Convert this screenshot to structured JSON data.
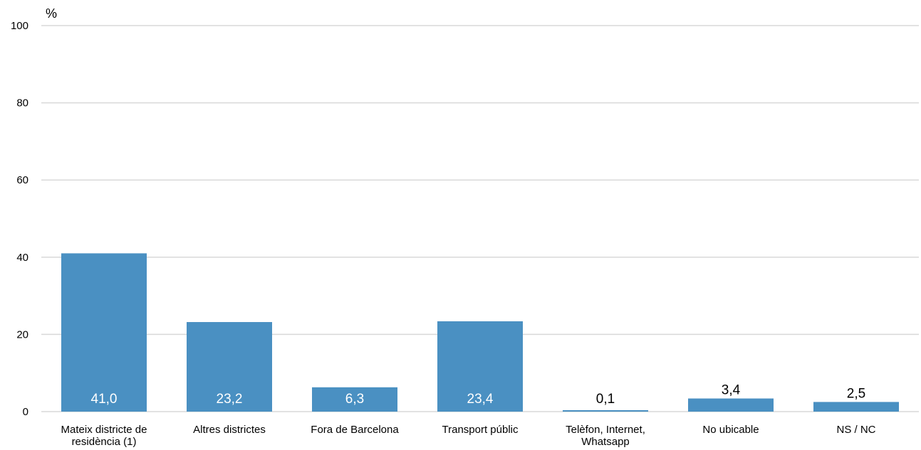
{
  "chart_data": {
    "type": "bar",
    "unit_label": "%",
    "categories": [
      [
        "Mateix districte de",
        "residència (1)"
      ],
      [
        "Altres districtes"
      ],
      [
        "Fora de Barcelona"
      ],
      [
        "Transport públic"
      ],
      [
        "Telèfon, Internet,",
        "Whatsapp"
      ],
      [
        "No ubicable"
      ],
      [
        "NS / NC"
      ]
    ],
    "values": [
      41.0,
      23.2,
      6.3,
      23.4,
      0.1,
      3.4,
      2.5
    ],
    "data_labels": [
      "41,0",
      "23,2",
      "6,3",
      "23,4",
      "0,1",
      "3,4",
      "2,5"
    ],
    "ylim": [
      0,
      100
    ],
    "yticks": [
      0,
      20,
      40,
      60,
      80,
      100
    ],
    "grid": true,
    "legend": "none",
    "bar_color": "#4a90c2",
    "label_inside_color": "#ffffff",
    "label_outside_color": "#000000"
  }
}
